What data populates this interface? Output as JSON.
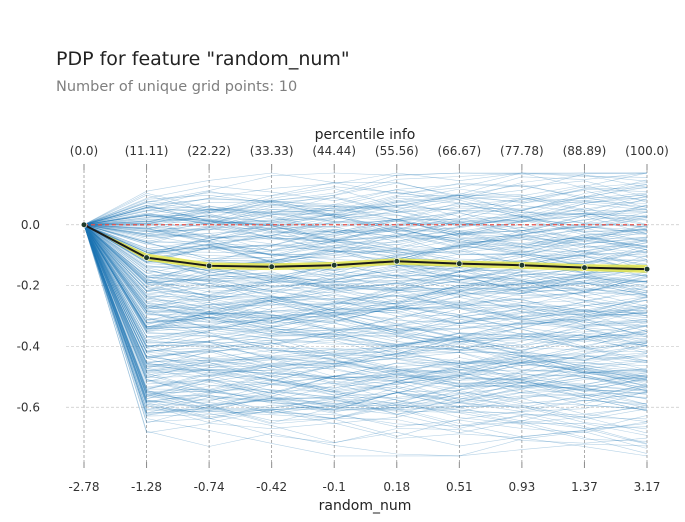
{
  "title": "PDP for feature \"random_num\"",
  "subtitle": "Number of unique grid points: 10",
  "chart_data": {
    "type": "line",
    "title": "PDP for feature \"random_num\"",
    "subtitle": "Number of unique grid points: 10",
    "xlabel": "random_num",
    "top_axis_label": "percentile info",
    "x_tick_labels": [
      "-2.78",
      "-1.28",
      "-0.74",
      "-0.42",
      "-0.1",
      "0.18",
      "0.51",
      "0.93",
      "1.37",
      "3.17"
    ],
    "percentile_labels": [
      "(0.0)",
      "(11.11)",
      "(22.22)",
      "(33.33)",
      "(44.44)",
      "(55.56)",
      "(66.67)",
      "(77.78)",
      "(88.89)",
      "(100.0)"
    ],
    "y_ticks": [
      0.0,
      -0.2,
      -0.4,
      -0.6
    ],
    "y_tick_labels": [
      "0.0",
      "-0.2",
      "-0.4",
      "-0.6"
    ],
    "ylim": [
      -0.78,
      0.18
    ],
    "grid": true,
    "series": [
      {
        "name": "",
        "values": [
          0.0,
          -0.108,
          -0.135,
          -0.138,
          -0.133,
          -0.12,
          -0.128,
          -0.133,
          -0.141,
          -0.146
        ]
      }
    ],
    "confidence_band": {
      "upper": [
        0.0,
        -0.095,
        -0.124,
        -0.127,
        -0.122,
        -0.11,
        -0.118,
        -0.122,
        -0.13,
        -0.132
      ],
      "lower": [
        0.0,
        -0.118,
        -0.146,
        -0.149,
        -0.144,
        -0.131,
        -0.139,
        -0.145,
        -0.152,
        -0.158
      ]
    },
    "reference_line": 0.0,
    "ice_lines": {
      "count": 300,
      "color": "#1f77b4"
    },
    "colors": {
      "pdp_line": "#1a1a1a",
      "band": "#e5e54a",
      "reference": "#e8514a",
      "ice": "#1f77b4",
      "grid": "#c8c8c8"
    }
  }
}
